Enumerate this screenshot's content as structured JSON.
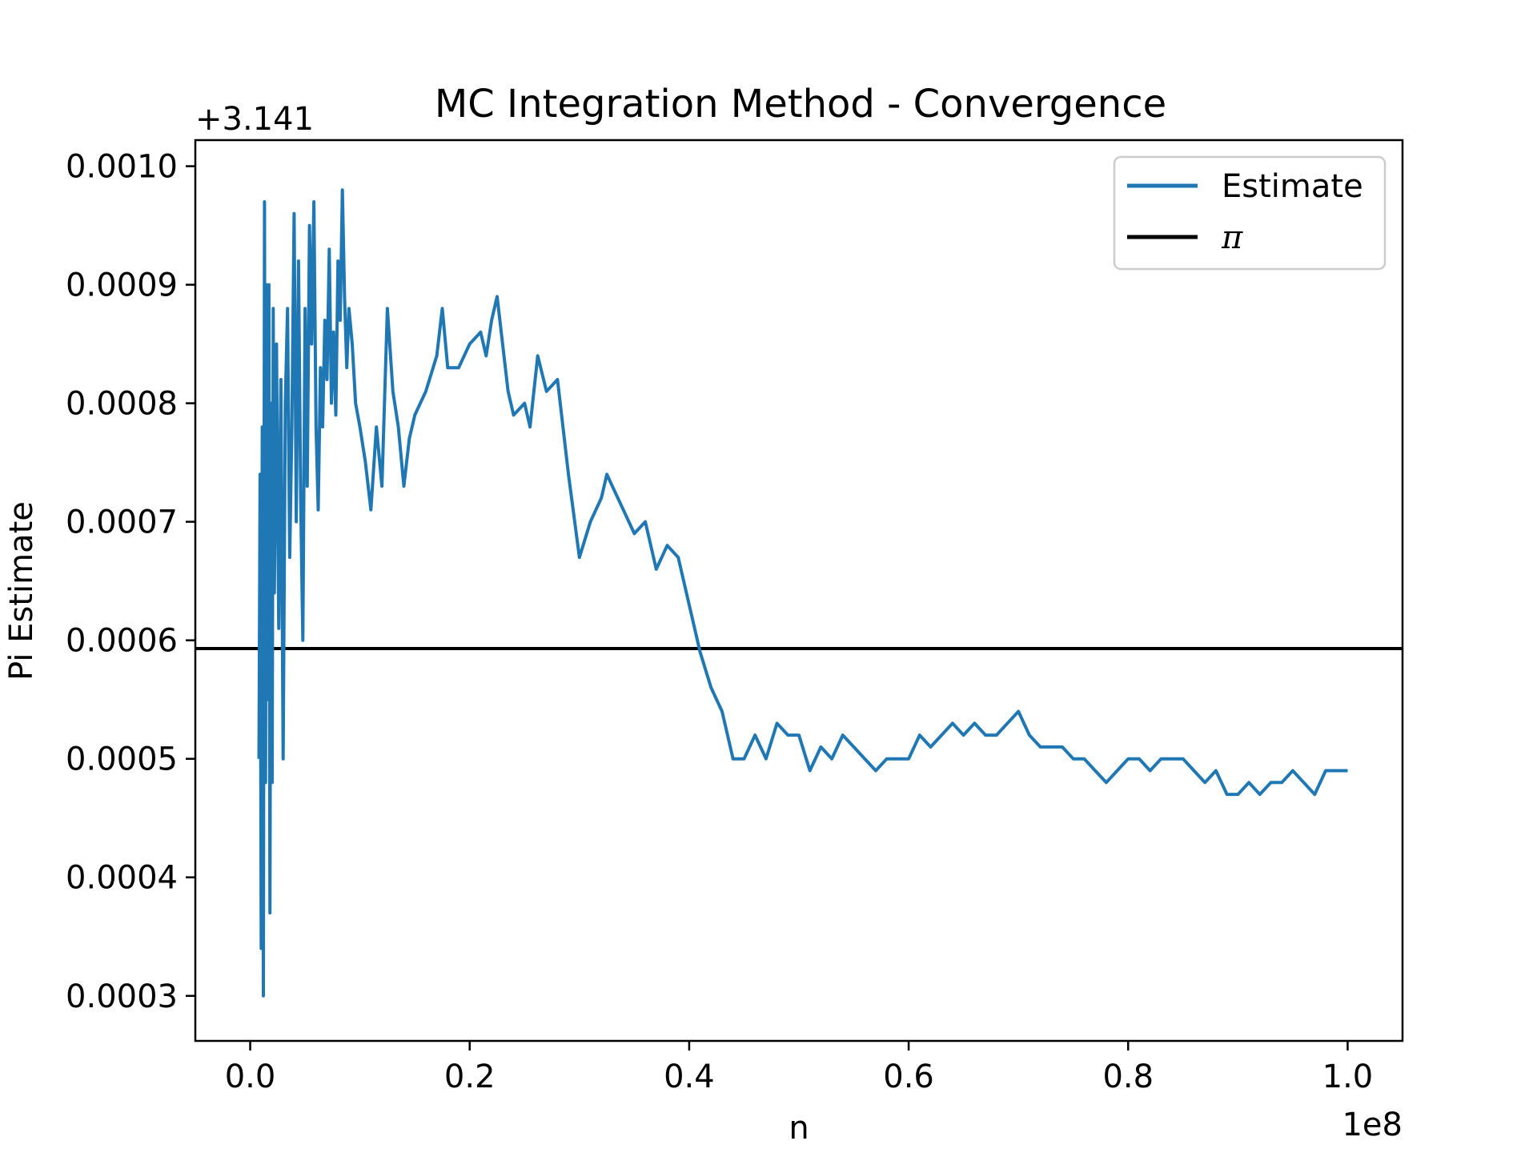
{
  "chart_data": {
    "type": "line",
    "title": "MC Integration Method - Convergence",
    "xlabel": "n",
    "ylabel": "Pi Estimate",
    "x_multiplier_label": "1e8",
    "y_offset_label": "+3.141",
    "y_offset": 3.141,
    "xlim": [
      -0.05,
      1.05
    ],
    "ylim": [
      0.000262,
      0.001022
    ],
    "x_scale": 100000000,
    "x_ticks": [
      {
        "value": 0.0,
        "label": "0.0"
      },
      {
        "value": 0.2,
        "label": "0.2"
      },
      {
        "value": 0.4,
        "label": "0.4"
      },
      {
        "value": 0.6,
        "label": "0.6"
      },
      {
        "value": 0.8,
        "label": "0.8"
      },
      {
        "value": 1.0,
        "label": "1.0"
      }
    ],
    "y_ticks": [
      {
        "value": 0.0003,
        "label": "0.0003"
      },
      {
        "value": 0.0004,
        "label": "0.0004"
      },
      {
        "value": 0.0005,
        "label": "0.0005"
      },
      {
        "value": 0.0006,
        "label": "0.0006"
      },
      {
        "value": 0.0007,
        "label": "0.0007"
      },
      {
        "value": 0.0008,
        "label": "0.0008"
      },
      {
        "value": 0.0009,
        "label": "0.0009"
      },
      {
        "value": 0.001,
        "label": "0.0010"
      }
    ],
    "legend": {
      "placement": "top-right",
      "entries": [
        {
          "label": "Estimate",
          "color": "#1f77b4",
          "italic": false
        },
        {
          "label": "π",
          "color": "#000000",
          "italic": true
        }
      ]
    },
    "series": [
      {
        "name": "Estimate",
        "color": "#1f77b4",
        "x": [
          0.008,
          0.009,
          0.01,
          0.011,
          0.012,
          0.013,
          0.014,
          0.015,
          0.016,
          0.017,
          0.018,
          0.019,
          0.02,
          0.021,
          0.022,
          0.023,
          0.024,
          0.026,
          0.028,
          0.03,
          0.032,
          0.034,
          0.036,
          0.038,
          0.04,
          0.042,
          0.044,
          0.046,
          0.048,
          0.05,
          0.052,
          0.054,
          0.056,
          0.058,
          0.06,
          0.062,
          0.064,
          0.066,
          0.068,
          0.07,
          0.072,
          0.074,
          0.076,
          0.078,
          0.08,
          0.082,
          0.084,
          0.086,
          0.088,
          0.09,
          0.093,
          0.096,
          0.1,
          0.105,
          0.11,
          0.115,
          0.12,
          0.125,
          0.13,
          0.135,
          0.14,
          0.145,
          0.15,
          0.16,
          0.17,
          0.175,
          0.18,
          0.19,
          0.2,
          0.21,
          0.215,
          0.22,
          0.225,
          0.235,
          0.24,
          0.25,
          0.255,
          0.262,
          0.27,
          0.28,
          0.29,
          0.3,
          0.31,
          0.32,
          0.325,
          0.33,
          0.34,
          0.35,
          0.36,
          0.37,
          0.38,
          0.39,
          0.4,
          0.41,
          0.42,
          0.43,
          0.44,
          0.45,
          0.46,
          0.47,
          0.48,
          0.49,
          0.5,
          0.51,
          0.52,
          0.53,
          0.54,
          0.55,
          0.56,
          0.57,
          0.58,
          0.59,
          0.6,
          0.61,
          0.62,
          0.63,
          0.64,
          0.65,
          0.66,
          0.67,
          0.68,
          0.69,
          0.7,
          0.71,
          0.72,
          0.73,
          0.74,
          0.75,
          0.76,
          0.77,
          0.78,
          0.79,
          0.8,
          0.81,
          0.82,
          0.83,
          0.84,
          0.85,
          0.86,
          0.87,
          0.88,
          0.89,
          0.9,
          0.91,
          0.92,
          0.93,
          0.94,
          0.95,
          0.96,
          0.97,
          0.98,
          0.99,
          1.0
        ],
        "y": [
          0.0005,
          0.00074,
          0.00034,
          0.00078,
          0.0003,
          0.00097,
          0.00048,
          0.0009,
          0.00055,
          0.0009,
          0.00037,
          0.0008,
          0.00048,
          0.00088,
          0.00064,
          0.00074,
          0.00085,
          0.00061,
          0.00082,
          0.0005,
          0.0008,
          0.00088,
          0.00067,
          0.00078,
          0.00096,
          0.0007,
          0.00092,
          0.00072,
          0.0006,
          0.00088,
          0.00073,
          0.00095,
          0.00085,
          0.00097,
          0.00078,
          0.00071,
          0.00083,
          0.00078,
          0.00087,
          0.00082,
          0.00093,
          0.0008,
          0.00086,
          0.00079,
          0.00092,
          0.00087,
          0.00098,
          0.00089,
          0.00083,
          0.00088,
          0.00085,
          0.0008,
          0.00078,
          0.00075,
          0.00071,
          0.00078,
          0.00073,
          0.00088,
          0.00081,
          0.00078,
          0.00073,
          0.00077,
          0.00079,
          0.00081,
          0.00084,
          0.00088,
          0.00083,
          0.00083,
          0.00085,
          0.00086,
          0.00084,
          0.00087,
          0.00089,
          0.00081,
          0.00079,
          0.0008,
          0.00078,
          0.00084,
          0.00081,
          0.00082,
          0.00074,
          0.00067,
          0.0007,
          0.00072,
          0.00074,
          0.00073,
          0.00071,
          0.00069,
          0.0007,
          0.00066,
          0.00068,
          0.00067,
          0.00063,
          0.00059,
          0.00056,
          0.00054,
          0.0005,
          0.0005,
          0.00052,
          0.0005,
          0.00053,
          0.00052,
          0.00052,
          0.00049,
          0.00051,
          0.0005,
          0.00052,
          0.00051,
          0.0005,
          0.00049,
          0.0005,
          0.0005,
          0.0005,
          0.00052,
          0.00051,
          0.00052,
          0.00053,
          0.00052,
          0.00053,
          0.00052,
          0.00052,
          0.00053,
          0.00054,
          0.00052,
          0.00051,
          0.00051,
          0.00051,
          0.0005,
          0.0005,
          0.00049,
          0.00048,
          0.00049,
          0.0005,
          0.0005,
          0.00049,
          0.0005,
          0.0005,
          0.0005,
          0.00049,
          0.00048,
          0.00049,
          0.00047,
          0.00047,
          0.00048,
          0.00047,
          0.00048,
          0.00048,
          0.00049,
          0.00048,
          0.00047,
          0.00049,
          0.00049,
          0.00049
        ]
      },
      {
        "name": "π",
        "color": "#000000",
        "type": "hline",
        "y": 0.000593
      }
    ]
  }
}
